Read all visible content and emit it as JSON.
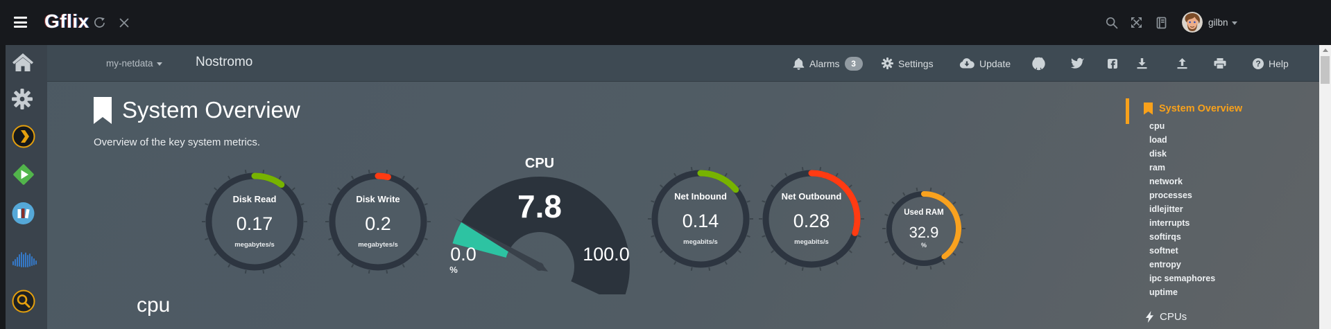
{
  "topbar": {
    "app_name": "Gflix",
    "username": "gilbn",
    "icons": [
      "menu",
      "refresh",
      "close",
      "search",
      "expand",
      "changelog-book",
      "user-avatar"
    ]
  },
  "navbar": {
    "host_selector": "my-netdata",
    "page_title": "Nostromo",
    "alarms_label": "Alarms",
    "alarms_count": "3",
    "settings_label": "Settings",
    "update_label": "Update",
    "help_label": "Help",
    "icons": [
      "bell",
      "gear",
      "cloud-download",
      "github",
      "twitter",
      "facebook",
      "import",
      "export",
      "print",
      "help-circle"
    ]
  },
  "sidebar": {
    "icons": [
      "home",
      "settings-gear",
      "plex",
      "emby",
      "library-books",
      "soundwave",
      "search-app"
    ]
  },
  "main": {
    "section_title": "System Overview",
    "section_subtitle": "Overview of the key system metrics.",
    "next_section_title": "cpu"
  },
  "menu": {
    "title": "System Overview",
    "items": [
      "cpu",
      "load",
      "disk",
      "ram",
      "network",
      "processes",
      "idlejitter",
      "interrupts",
      "softirqs",
      "softnet",
      "entropy",
      "ipc semaphores",
      "uptime"
    ],
    "cpus_label": "CPUs"
  },
  "chart_data": {
    "type": "gauge",
    "gauges": [
      {
        "label": "Disk Read",
        "value": "0.17",
        "unit": "megabytes/s",
        "color_key": "green",
        "fraction": 0.1
      },
      {
        "label": "Disk Write",
        "value": "0.2",
        "unit": "megabytes/s",
        "color_key": "red",
        "fraction": 0.035
      },
      {
        "label": "CPU",
        "value": "7.8",
        "unit": "%",
        "min": "0.0",
        "max": "100.0",
        "color_key": "teal",
        "fraction": 0.078
      },
      {
        "label": "Net Inbound",
        "value": "0.14",
        "unit": "megabits/s",
        "color_key": "green",
        "fraction": 0.14
      },
      {
        "label": "Net Outbound",
        "value": "0.28",
        "unit": "megabits/s",
        "color_key": "red",
        "fraction": 0.3
      },
      {
        "label": "Used RAM",
        "value": "32.9",
        "unit": "%",
        "color_key": "orange",
        "fraction": 0.4
      }
    ]
  },
  "colors": {
    "green": "#77b300",
    "red": "#ff3b12",
    "orange": "#f9a21f",
    "teal": "#2dc3a2",
    "accent_orange": "#f8a11b",
    "ring": "#2d3540",
    "gauge_fan": "#2b333c",
    "needle": "#39414a"
  }
}
